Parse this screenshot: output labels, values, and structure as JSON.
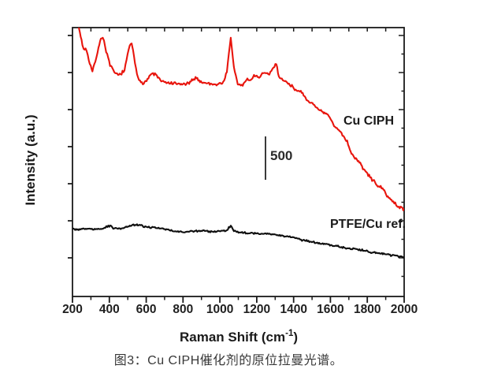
{
  "figure": {
    "caption": "图3：Cu CIPH催化剂的原位拉曼光谱。"
  },
  "colors": {
    "axis": "#1a1a1a",
    "tick_label": "#1f1f1f",
    "scale_bar": "#3a3a3a",
    "cu_ciph_red": "#e8150d",
    "ref_black": "#0f0f0f"
  },
  "chart_data": {
    "type": "line",
    "title": "",
    "xlabel_pre": "Raman Shift (cm",
    "xlabel_sup": "-1",
    "xlabel_post": ")",
    "ylabel": "Intensity (a.u.)",
    "xlim": [
      200,
      2000
    ],
    "ylim_au": [
      0,
      3100
    ],
    "x_ticks": [
      200,
      400,
      600,
      800,
      1000,
      1200,
      1400,
      1600,
      1800,
      2000
    ],
    "x_minor_step": 100,
    "y_ticks_labeled": false,
    "grid": false,
    "legend_position": "inline-annotations",
    "scale_bar": {
      "label": "500",
      "value_au": 500
    },
    "series": [
      {
        "name": "Cu CIPH",
        "color": "#e8150d",
        "noise_au": 22,
        "peaks_cm": [
          364,
          521,
          1059,
          1306
        ],
        "points": [
          [
            230,
            3260
          ],
          [
            233,
            3100
          ],
          [
            240,
            3046
          ],
          [
            254,
            2909
          ],
          [
            261,
            2846
          ],
          [
            271,
            2864
          ],
          [
            283,
            2782
          ],
          [
            294,
            2691
          ],
          [
            308,
            2591
          ],
          [
            324,
            2709
          ],
          [
            341,
            2873
          ],
          [
            354,
            2964
          ],
          [
            364,
            3000
          ],
          [
            371,
            2946
          ],
          [
            383,
            2827
          ],
          [
            404,
            2664
          ],
          [
            422,
            2600
          ],
          [
            447,
            2546
          ],
          [
            461,
            2573
          ],
          [
            482,
            2600
          ],
          [
            499,
            2782
          ],
          [
            511,
            2891
          ],
          [
            521,
            2927
          ],
          [
            529,
            2827
          ],
          [
            539,
            2682
          ],
          [
            556,
            2509
          ],
          [
            582,
            2464
          ],
          [
            602,
            2491
          ],
          [
            632,
            2573
          ],
          [
            653,
            2555
          ],
          [
            682,
            2482
          ],
          [
            705,
            2464
          ],
          [
            747,
            2455
          ],
          [
            790,
            2445
          ],
          [
            833,
            2455
          ],
          [
            868,
            2527
          ],
          [
            897,
            2473
          ],
          [
            940,
            2455
          ],
          [
            982,
            2445
          ],
          [
            1018,
            2464
          ],
          [
            1038,
            2600
          ],
          [
            1059,
            2973
          ],
          [
            1076,
            2645
          ],
          [
            1097,
            2445
          ],
          [
            1124,
            2436
          ],
          [
            1149,
            2509
          ],
          [
            1166,
            2482
          ],
          [
            1185,
            2555
          ],
          [
            1200,
            2536
          ],
          [
            1213,
            2527
          ],
          [
            1230,
            2564
          ],
          [
            1243,
            2573
          ],
          [
            1263,
            2555
          ],
          [
            1285,
            2618
          ],
          [
            1306,
            2691
          ],
          [
            1320,
            2536
          ],
          [
            1342,
            2491
          ],
          [
            1370,
            2464
          ],
          [
            1406,
            2391
          ],
          [
            1434,
            2373
          ],
          [
            1470,
            2264
          ],
          [
            1491,
            2236
          ],
          [
            1513,
            2218
          ],
          [
            1534,
            2145
          ],
          [
            1563,
            2118
          ],
          [
            1591,
            2082
          ],
          [
            1620,
            1964
          ],
          [
            1655,
            1900
          ],
          [
            1691,
            1782
          ],
          [
            1719,
            1627
          ],
          [
            1748,
            1573
          ],
          [
            1776,
            1482
          ],
          [
            1805,
            1400
          ],
          [
            1847,
            1300
          ],
          [
            1883,
            1236
          ],
          [
            1926,
            1118
          ],
          [
            1962,
            1045
          ],
          [
            2000,
            1009
          ]
        ]
      },
      {
        "name": "PTFE/Cu ref.",
        "color": "#0f0f0f",
        "noise_au": 13,
        "peaks_cm": [
          405,
          555,
          1059
        ],
        "points": [
          [
            200,
            782
          ],
          [
            234,
            773
          ],
          [
            277,
            782
          ],
          [
            320,
            773
          ],
          [
            363,
            782
          ],
          [
            405,
            818
          ],
          [
            427,
            782
          ],
          [
            457,
            782
          ],
          [
            491,
            800
          ],
          [
            526,
            818
          ],
          [
            555,
            827
          ],
          [
            585,
            809
          ],
          [
            619,
            800
          ],
          [
            662,
            791
          ],
          [
            705,
            773
          ],
          [
            747,
            755
          ],
          [
            803,
            745
          ],
          [
            867,
            755
          ],
          [
            918,
            755
          ],
          [
            982,
            745
          ],
          [
            1038,
            764
          ],
          [
            1059,
            818
          ],
          [
            1076,
            755
          ],
          [
            1106,
            736
          ],
          [
            1175,
            727
          ],
          [
            1248,
            727
          ],
          [
            1320,
            709
          ],
          [
            1389,
            682
          ],
          [
            1461,
            645
          ],
          [
            1534,
            618
          ],
          [
            1602,
            591
          ],
          [
            1675,
            564
          ],
          [
            1748,
            545
          ],
          [
            1816,
            509
          ],
          [
            1889,
            491
          ],
          [
            1962,
            464
          ],
          [
            2000,
            455
          ]
        ]
      }
    ]
  }
}
